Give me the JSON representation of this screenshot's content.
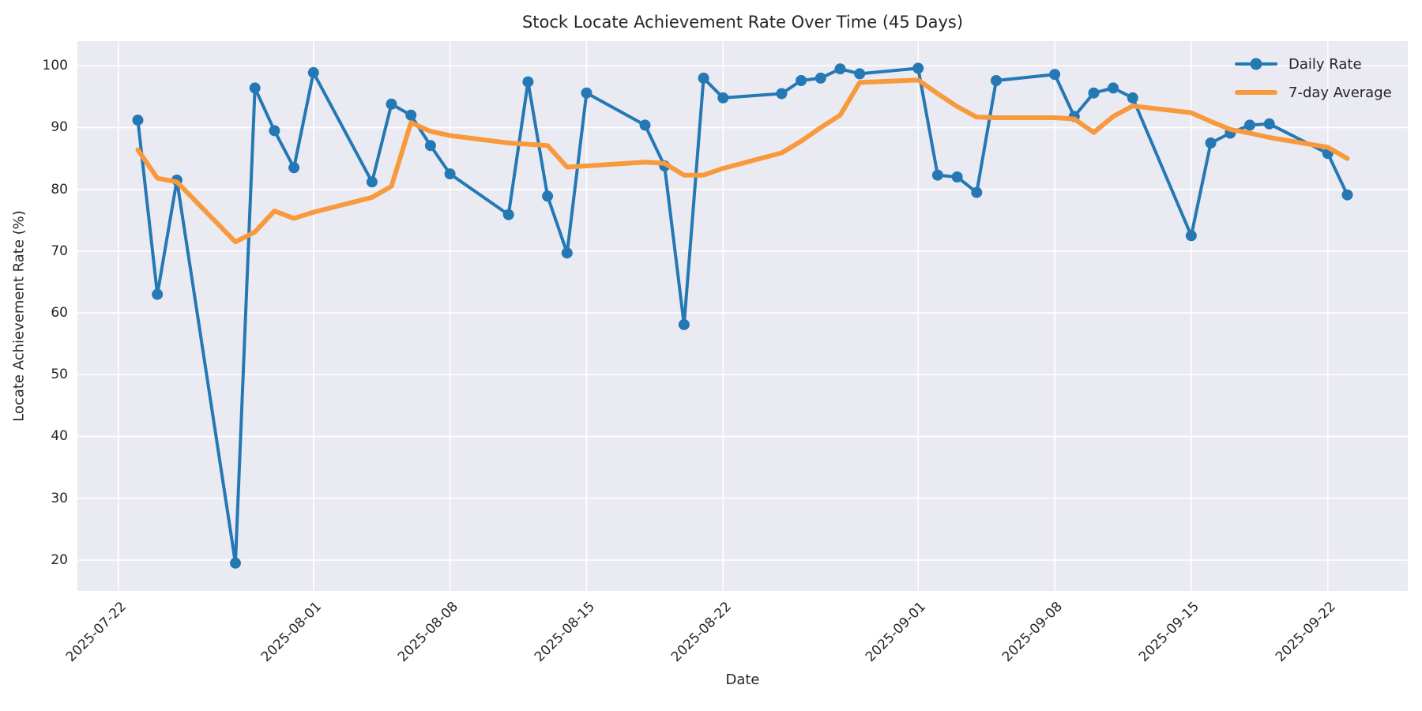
{
  "title": "Stock Locate Achievement Rate Over Time (45 Days)",
  "xlabel": "Date",
  "ylabel": "Locate Achievement Rate (%)",
  "colors": {
    "daily": "#2478b4",
    "average": "#f8993c",
    "plot_bg": "#eaeaf2",
    "grid": "#ffffff",
    "text": "#262626",
    "fig_bg": "#ffffff"
  },
  "chart_data": {
    "type": "line",
    "title": "Stock Locate Achievement Rate Over Time (45 Days)",
    "xlabel": "Date",
    "ylabel": "Locate Achievement Rate (%)",
    "grid": true,
    "legend_position": "upper right",
    "x_epoch": "2025-07-22",
    "xlim_days": [
      -2.1,
      66.1
    ],
    "ylim": [
      15,
      104
    ],
    "y_ticks": [
      20,
      30,
      40,
      50,
      60,
      70,
      80,
      90,
      100
    ],
    "x_ticks": [
      "2025-07-22",
      "2025-08-01",
      "2025-08-08",
      "2025-08-15",
      "2025-08-22",
      "2025-09-01",
      "2025-09-08",
      "2025-09-15",
      "2025-09-22"
    ],
    "x": [
      "2025-07-23",
      "2025-07-24",
      "2025-07-25",
      "2025-07-28",
      "2025-07-29",
      "2025-07-30",
      "2025-07-31",
      "2025-08-01",
      "2025-08-04",
      "2025-08-05",
      "2025-08-06",
      "2025-08-07",
      "2025-08-08",
      "2025-08-11",
      "2025-08-12",
      "2025-08-13",
      "2025-08-14",
      "2025-08-15",
      "2025-08-18",
      "2025-08-19",
      "2025-08-20",
      "2025-08-21",
      "2025-08-22",
      "2025-08-25",
      "2025-08-26",
      "2025-08-27",
      "2025-08-28",
      "2025-08-29",
      "2025-09-01",
      "2025-09-02",
      "2025-09-03",
      "2025-09-04",
      "2025-09-05",
      "2025-09-08",
      "2025-09-09",
      "2025-09-10",
      "2025-09-11",
      "2025-09-12",
      "2025-09-15",
      "2025-09-16",
      "2025-09-17",
      "2025-09-18",
      "2025-09-19",
      "2025-09-22",
      "2025-09-23"
    ],
    "series": [
      {
        "name": "Daily Rate",
        "color": "#2478b4",
        "marker": "circle",
        "marker_radius": 7,
        "line_width": 4,
        "values": [
          91.2,
          63.0,
          81.5,
          19.5,
          96.4,
          89.5,
          83.5,
          98.9,
          81.2,
          93.8,
          92.0,
          87.1,
          82.5,
          75.9,
          97.4,
          78.9,
          69.7,
          95.6,
          90.4,
          83.8,
          58.1,
          98.0,
          94.8,
          95.5,
          97.6,
          98.0,
          99.5,
          98.7,
          99.6,
          82.3,
          82.0,
          79.5,
          97.6,
          98.6,
          91.8,
          95.6,
          96.4,
          94.8,
          72.5,
          87.5,
          89.1,
          90.4,
          90.6,
          85.8,
          79.1
        ]
      },
      {
        "name": "7-day Average",
        "color": "#f8993c",
        "marker": null,
        "marker_radius": 0,
        "line_width": 6,
        "values": [
          86.4,
          81.8,
          81.2,
          71.5,
          73.1,
          76.5,
          75.3,
          76.3,
          78.7,
          80.5,
          90.8,
          89.4,
          88.7,
          87.5,
          87.3,
          87.1,
          83.6,
          83.8,
          84.4,
          84.2,
          82.3,
          82.3,
          83.4,
          85.9,
          87.8,
          90.0,
          92.0,
          97.3,
          97.7,
          95.5,
          93.4,
          91.7,
          91.6,
          91.6,
          91.4,
          89.2,
          91.8,
          93.5,
          92.4,
          91.0,
          89.7,
          89.1,
          88.4,
          86.8,
          85.0
        ]
      }
    ]
  }
}
